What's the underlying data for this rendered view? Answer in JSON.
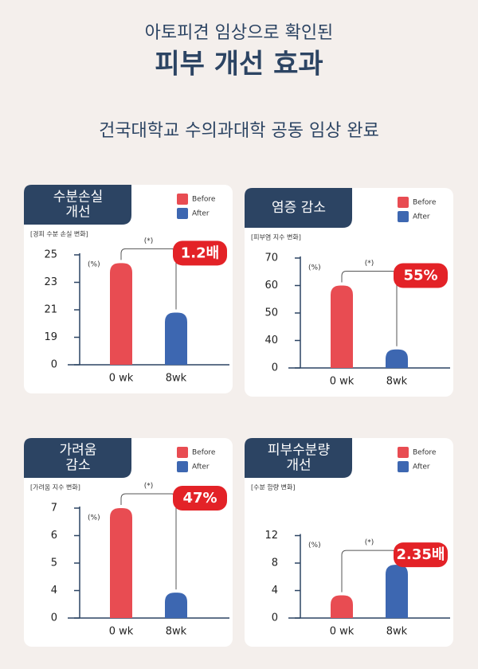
{
  "header": {
    "kicker": "아토피견 임상으로 확인된",
    "title": "피부 개선 효과",
    "caption": "건국대학교 수의과대학 공동 임상 완료"
  },
  "chart_data": [
    {
      "type": "bar",
      "title": [
        "수분손실",
        "개선"
      ],
      "subtitle": "[경피 수분 손실 변화]",
      "unit": "(%)",
      "annotation": "(*)",
      "badge": "1.2배",
      "categories": [
        "0 wk",
        "8wk"
      ],
      "series": [
        {
          "name": "Before",
          "color": "#e84c52",
          "values": [
            24.4,
            null
          ]
        },
        {
          "name": "After",
          "color": "#3d67b1",
          "values": [
            null,
            20.8
          ]
        }
      ],
      "ylim": [
        0,
        25
      ],
      "yticks": [
        0,
        19,
        21,
        23,
        25
      ]
    },
    {
      "type": "bar",
      "title": [
        "염증 감소"
      ],
      "subtitle": "[피부염 지수 변화]",
      "unit": "(%)",
      "annotation": "(*)",
      "badge": "55%",
      "categories": [
        "0 wk",
        "8wk"
      ],
      "series": [
        {
          "name": "Before",
          "color": "#e84c52",
          "values": [
            60,
            null
          ]
        },
        {
          "name": "After",
          "color": "#3d67b1",
          "values": [
            null,
            27
          ]
        }
      ],
      "ylim": [
        0,
        70
      ],
      "yticks": [
        0,
        40,
        50,
        60,
        70
      ]
    },
    {
      "type": "bar",
      "title": [
        "가려움",
        "감소"
      ],
      "subtitle": "[가려움 지수 변화]",
      "unit": "(%)",
      "annotation": "(*)",
      "badge": "47%",
      "categories": [
        "0 wk",
        "8wk"
      ],
      "series": [
        {
          "name": "Before",
          "color": "#e84c52",
          "values": [
            7,
            null
          ]
        },
        {
          "name": "After",
          "color": "#3d67b1",
          "values": [
            null,
            3.7
          ]
        }
      ],
      "ylim": [
        0,
        7
      ],
      "yticks": [
        0,
        4,
        5,
        6,
        7
      ]
    },
    {
      "type": "bar",
      "title": [
        "피부수분량",
        "개선"
      ],
      "subtitle": "[수분 함량 변화]",
      "unit": "(%)",
      "annotation": "(*)",
      "badge": "2.35배",
      "categories": [
        "0 wk",
        "8wk"
      ],
      "series": [
        {
          "name": "Before",
          "color": "#e84c52",
          "values": [
            3.3,
            null
          ]
        },
        {
          "name": "After",
          "color": "#3d67b1",
          "values": [
            null,
            7.75
          ]
        }
      ],
      "ylim": [
        0,
        12
      ],
      "yticks": [
        0,
        4,
        8,
        12
      ]
    }
  ]
}
